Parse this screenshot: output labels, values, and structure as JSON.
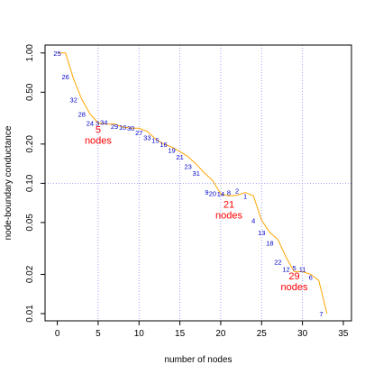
{
  "chart_data": {
    "type": "line",
    "title": "",
    "xlabel": "number of nodes",
    "ylabel": "node-boundary conductance",
    "x_scale": "linear",
    "y_scale": "log",
    "xlim": [
      -1.5,
      36
    ],
    "ylim": [
      0.0088,
      1.15
    ],
    "x_ticks": [
      0,
      5,
      10,
      15,
      20,
      25,
      30,
      35
    ],
    "x_tick_labels": [
      "0",
      "5",
      "10",
      "15",
      "20",
      "25",
      "30",
      "35"
    ],
    "y_ticks": [
      0.01,
      0.02,
      0.05,
      0.1,
      0.2,
      0.5,
      1.0
    ],
    "y_tick_labels": [
      "0.01",
      "0.02",
      "0.05",
      "0.10",
      "0.20",
      "0.50",
      "1.00"
    ],
    "grid_x": [
      5,
      10,
      15,
      20,
      25,
      30
    ],
    "grid_y": [
      0.1
    ],
    "series": [
      {
        "color": "#ffa500",
        "x": [
          0,
          1,
          2,
          3,
          4,
          5,
          6,
          7,
          8,
          9,
          10,
          11,
          12,
          13,
          14,
          15,
          16,
          17,
          18,
          19,
          20,
          21,
          22,
          23,
          24,
          25,
          26,
          27,
          28,
          29,
          30,
          31,
          32,
          33
        ],
        "y": [
          1.0,
          1.0,
          0.63,
          0.44,
          0.34,
          0.29,
          0.285,
          0.285,
          0.27,
          0.265,
          0.265,
          0.25,
          0.22,
          0.2,
          0.19,
          0.175,
          0.16,
          0.14,
          0.12,
          0.105,
          0.083,
          0.08,
          0.081,
          0.085,
          0.08,
          0.052,
          0.042,
          0.037,
          0.027,
          0.021,
          0.021,
          0.02,
          0.018,
          0.01
        ]
      }
    ],
    "points": [
      {
        "label": "25",
        "x": 0,
        "y": 1.0
      },
      {
        "label": "26",
        "x": 1,
        "y": 0.66
      },
      {
        "label": "32",
        "x": 2,
        "y": 0.44
      },
      {
        "label": "28",
        "x": 3,
        "y": 0.34
      },
      {
        "label": "24",
        "x": 4,
        "y": 0.29
      },
      {
        "label": "3",
        "x": 4.9,
        "y": 0.29
      },
      {
        "label": "34",
        "x": 5.7,
        "y": 0.295
      },
      {
        "label": "29",
        "x": 7,
        "y": 0.275
      },
      {
        "label": "10",
        "x": 8,
        "y": 0.27
      },
      {
        "label": "30",
        "x": 9,
        "y": 0.265
      },
      {
        "label": "27",
        "x": 10,
        "y": 0.245
      },
      {
        "label": "33",
        "x": 11,
        "y": 0.225
      },
      {
        "label": "15",
        "x": 12,
        "y": 0.215
      },
      {
        "label": "16",
        "x": 13,
        "y": 0.2
      },
      {
        "label": "19",
        "x": 14,
        "y": 0.18
      },
      {
        "label": "21",
        "x": 15,
        "y": 0.16
      },
      {
        "label": "23",
        "x": 16,
        "y": 0.135
      },
      {
        "label": "31",
        "x": 17,
        "y": 0.12
      },
      {
        "label": "9",
        "x": 18.3,
        "y": 0.086
      },
      {
        "label": "20",
        "x": 19,
        "y": 0.084
      },
      {
        "label": "14",
        "x": 20,
        "y": 0.083
      },
      {
        "label": "8",
        "x": 21,
        "y": 0.085
      },
      {
        "label": "2",
        "x": 22,
        "y": 0.088
      },
      {
        "label": "1",
        "x": 23,
        "y": 0.08
      },
      {
        "label": "4",
        "x": 24,
        "y": 0.052
      },
      {
        "label": "13",
        "x": 25,
        "y": 0.042
      },
      {
        "label": "18",
        "x": 26,
        "y": 0.035
      },
      {
        "label": "22",
        "x": 27,
        "y": 0.025
      },
      {
        "label": "12",
        "x": 28,
        "y": 0.022
      },
      {
        "label": "5",
        "x": 29,
        "y": 0.0225
      },
      {
        "label": "11",
        "x": 30,
        "y": 0.022
      },
      {
        "label": "6",
        "x": 31,
        "y": 0.019
      },
      {
        "label": "7",
        "x": 32.3,
        "y": 0.01
      }
    ],
    "annotations": [
      {
        "value": "5",
        "unit": "nodes",
        "x": 5,
        "y": 0.26
      },
      {
        "value": "21",
        "unit": "nodes",
        "x": 21,
        "y": 0.069
      },
      {
        "value": "29",
        "unit": "nodes",
        "x": 29,
        "y": 0.0195
      }
    ]
  }
}
